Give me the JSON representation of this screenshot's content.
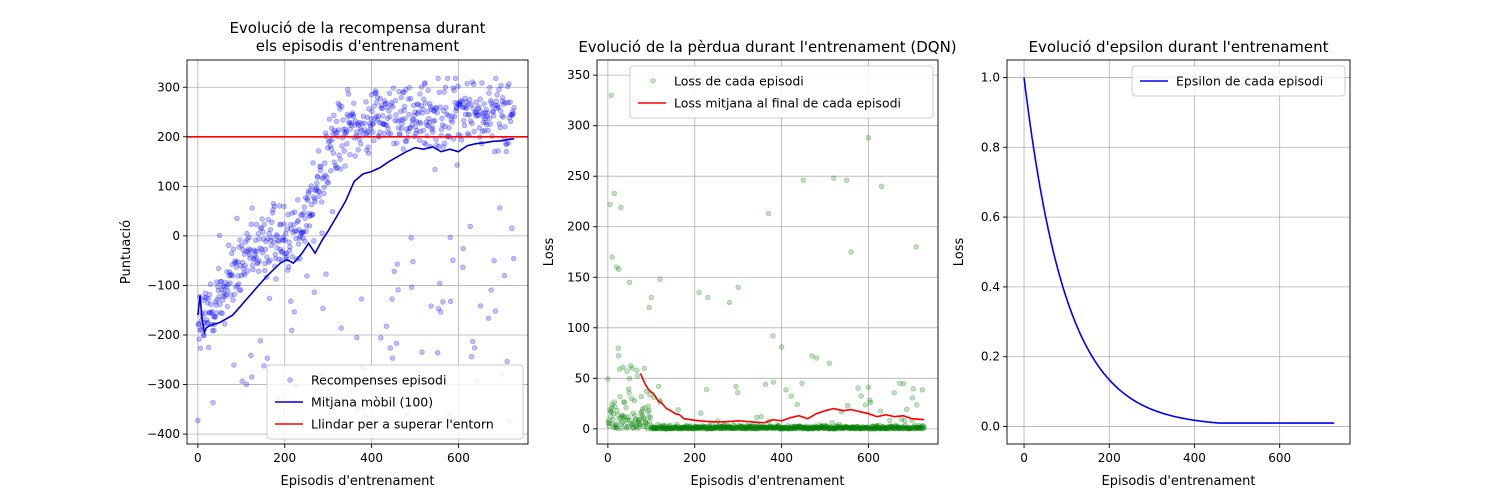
{
  "chart_data": [
    {
      "type": "scatter",
      "title": [
        "Evolució de la recompensa durant",
        "els episodis d'entrenament"
      ],
      "xlabel": "Episodis d'entrenament",
      "ylabel": "Puntuació",
      "xlim": [
        -25,
        760
      ],
      "ylim": [
        -420,
        355
      ],
      "xticks": [
        0,
        200,
        400,
        600
      ],
      "yticks": [
        -400,
        -300,
        -200,
        -100,
        0,
        100,
        200,
        300
      ],
      "grid": true,
      "legend_loc": "lower right",
      "series": [
        {
          "name": "Recompenses episodi",
          "kind": "scatter",
          "color": "#0000ff",
          "alpha": 0.25,
          "trend": [
            [
              0,
              -190
            ],
            [
              50,
              -120
            ],
            [
              100,
              -60
            ],
            [
              150,
              -20
            ],
            [
              200,
              0
            ],
            [
              250,
              40
            ],
            [
              300,
              170
            ],
            [
              350,
              220
            ],
            [
              400,
              235
            ],
            [
              450,
              235
            ],
            [
              500,
              240
            ],
            [
              550,
              240
            ],
            [
              600,
              250
            ],
            [
              650,
              250
            ],
            [
              728,
              250
            ]
          ],
          "spread": 70,
          "outlier_rate": 0.12,
          "outlier_range": [
            -380,
            60
          ],
          "n": 729
        },
        {
          "name": "Mitjana mòbil (100)",
          "kind": "line",
          "color": "#0000cc",
          "points": [
            [
              0,
              -160
            ],
            [
              5,
              -120
            ],
            [
              10,
              -170
            ],
            [
              15,
              -195
            ],
            [
              20,
              -185
            ],
            [
              30,
              -180
            ],
            [
              50,
              -175
            ],
            [
              80,
              -160
            ],
            [
              100,
              -140
            ],
            [
              130,
              -110
            ],
            [
              160,
              -80
            ],
            [
              190,
              -55
            ],
            [
              205,
              -48
            ],
            [
              220,
              -55
            ],
            [
              240,
              -35
            ],
            [
              255,
              -15
            ],
            [
              270,
              -35
            ],
            [
              285,
              -10
            ],
            [
              300,
              10
            ],
            [
              320,
              40
            ],
            [
              340,
              70
            ],
            [
              360,
              110
            ],
            [
              380,
              125
            ],
            [
              400,
              130
            ],
            [
              420,
              138
            ],
            [
              440,
              150
            ],
            [
              460,
              160
            ],
            [
              480,
              170
            ],
            [
              500,
              178
            ],
            [
              520,
              175
            ],
            [
              540,
              180
            ],
            [
              560,
              170
            ],
            [
              580,
              175
            ],
            [
              600,
              170
            ],
            [
              620,
              182
            ],
            [
              640,
              186
            ],
            [
              660,
              188
            ],
            [
              680,
              191
            ],
            [
              700,
              192
            ],
            [
              715,
              195
            ],
            [
              728,
              196
            ]
          ]
        },
        {
          "name": "Llindar per a superar l'entorn",
          "kind": "hline",
          "color": "#ff0000",
          "y": 200
        }
      ]
    },
    {
      "type": "scatter",
      "title": "Evolució de la pèrdua durant l'entrenament (DQN)",
      "xlabel": "Episodis d'entrenament",
      "ylabel": "Loss",
      "xlim": [
        -25,
        760
      ],
      "ylim": [
        -15,
        365
      ],
      "xticks": [
        0,
        200,
        400,
        600
      ],
      "yticks": [
        0,
        50,
        100,
        150,
        200,
        250,
        300,
        350
      ],
      "grid": true,
      "legend_loc": "upper right",
      "series": [
        {
          "name": "Loss de cada episodi",
          "kind": "scatter",
          "color": "#008000",
          "alpha": 0.25,
          "n": 729,
          "highlights": [
            [
              8,
              330
            ],
            [
              15,
              233
            ],
            [
              5,
              222
            ],
            [
              30,
              219
            ],
            [
              20,
              160
            ],
            [
              25,
              158
            ],
            [
              10,
              170
            ],
            [
              95,
              120
            ],
            [
              100,
              130
            ],
            [
              120,
              148
            ],
            [
              50,
              145
            ],
            [
              280,
              125
            ],
            [
              300,
              140
            ],
            [
              210,
              135
            ],
            [
              230,
              130
            ],
            [
              370,
              213
            ],
            [
              380,
              92
            ],
            [
              400,
              81
            ],
            [
              450,
              246
            ],
            [
              520,
              248
            ],
            [
              550,
              246
            ],
            [
              600,
              288
            ],
            [
              630,
              240
            ],
            [
              560,
              175
            ],
            [
              710,
              180
            ],
            [
              480,
              70
            ],
            [
              510,
              65
            ],
            [
              470,
              72
            ]
          ]
        },
        {
          "name": "Loss mitjana al final de cada episodi",
          "kind": "line",
          "color": "#ff0000",
          "points": [
            [
              75,
              55
            ],
            [
              85,
              45
            ],
            [
              95,
              38
            ],
            [
              105,
              35
            ],
            [
              115,
              28
            ],
            [
              125,
              25
            ],
            [
              135,
              20
            ],
            [
              145,
              18
            ],
            [
              155,
              15
            ],
            [
              165,
              14
            ],
            [
              175,
              10
            ],
            [
              190,
              9
            ],
            [
              210,
              8
            ],
            [
              240,
              7
            ],
            [
              270,
              7
            ],
            [
              300,
              8
            ],
            [
              330,
              7
            ],
            [
              360,
              6
            ],
            [
              380,
              9
            ],
            [
              400,
              8
            ],
            [
              420,
              11
            ],
            [
              440,
              13
            ],
            [
              460,
              10
            ],
            [
              480,
              15
            ],
            [
              500,
              18
            ],
            [
              520,
              20
            ],
            [
              540,
              18
            ],
            [
              560,
              19
            ],
            [
              580,
              17
            ],
            [
              600,
              15
            ],
            [
              620,
              12
            ],
            [
              640,
              14
            ],
            [
              660,
              12
            ],
            [
              680,
              13
            ],
            [
              700,
              10
            ],
            [
              728,
              9
            ]
          ]
        }
      ]
    },
    {
      "type": "line",
      "title": "Evolució d'epsilon durant l'entrenament",
      "xlabel": "Episodis d'entrenament",
      "ylabel": "Loss",
      "xlim": [
        -40,
        765
      ],
      "ylim": [
        -0.05,
        1.05
      ],
      "xticks": [
        0,
        200,
        400,
        600
      ],
      "yticks": [
        0.0,
        0.2,
        0.4,
        0.6,
        0.8,
        1.0
      ],
      "grid": true,
      "legend_loc": "upper right",
      "series": [
        {
          "name": "Epsilon de cada episodi",
          "kind": "epsilon",
          "color": "#0000ff",
          "start": 1.0,
          "min": 0.01,
          "decay": 0.99,
          "episodes": 729
        }
      ]
    }
  ]
}
